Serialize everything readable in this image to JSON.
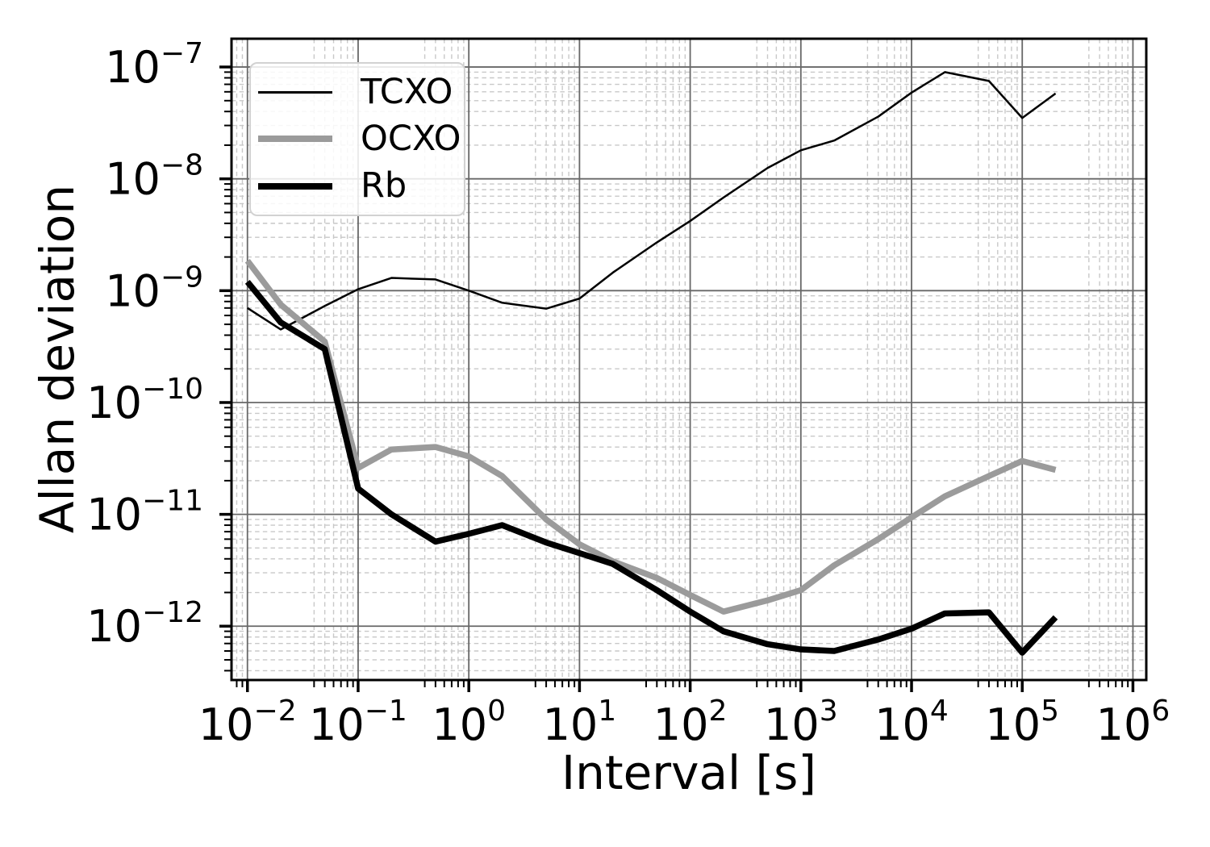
{
  "chart_data": {
    "type": "line",
    "title": "",
    "xlabel": "Interval [s]",
    "ylabel": "Allan deviation",
    "x_scale": "log",
    "y_scale": "log",
    "xlim": [
      0.00718,
      1320000
    ],
    "ylim": [
      3.3e-13,
      1.79e-07
    ],
    "grid": {
      "major": true,
      "minor": true,
      "minor_style": "dashed"
    },
    "legend_position": "upper-left",
    "x_tick_exponents": [
      -2,
      -1,
      0,
      1,
      2,
      3,
      4,
      5,
      6
    ],
    "y_tick_exponents": [
      -7,
      -8,
      -9,
      -10,
      -11,
      -12
    ],
    "x_tick_labels": [
      "10⁻²",
      "10⁻¹",
      "10⁰",
      "10¹",
      "10²",
      "10³",
      "10⁴",
      "10⁵",
      "10⁶"
    ],
    "y_tick_labels": [
      "10⁻⁷",
      "10⁻⁸",
      "10⁻⁹",
      "10⁻¹⁰",
      "10⁻¹¹",
      "10⁻¹²"
    ],
    "x": [
      0.01,
      0.02,
      0.05,
      0.1,
      0.2,
      0.5,
      1,
      2,
      5,
      10,
      20,
      50,
      100,
      200,
      500,
      1000,
      2000,
      5000,
      10000,
      20000,
      50000,
      100000,
      200000
    ],
    "series": [
      {
        "name": "TCXO",
        "color": "#000000",
        "width": 2.5,
        "values": [
          7e-10,
          4.5e-10,
          7.3e-10,
          1.03e-09,
          1.3e-09,
          1.26e-09,
          1e-09,
          7.8e-10,
          6.9e-10,
          8.5e-10,
          1.45e-09,
          2.7e-09,
          4.2e-09,
          6.8e-09,
          1.25e-08,
          1.8e-08,
          2.2e-08,
          3.6e-08,
          5.9e-08,
          9e-08,
          7.5e-08,
          3.5e-08,
          5.8e-08
        ]
      },
      {
        "name": "OCXO",
        "color": "#9b9b9b",
        "width": 7.5,
        "values": [
          1.85e-09,
          7.5e-10,
          3.5e-10,
          2.6e-11,
          3.8e-11,
          4e-11,
          3.3e-11,
          2.2e-11,
          9e-12,
          5.4e-12,
          3.8e-12,
          2.7e-12,
          1.9e-12,
          1.35e-12,
          1.7e-12,
          2.1e-12,
          3.5e-12,
          6e-12,
          9.4e-12,
          1.45e-11,
          2.2e-11,
          3e-11,
          2.5e-11
        ]
      },
      {
        "name": "Rb",
        "color": "#000000",
        "width": 7.5,
        "values": [
          1.2e-09,
          5.2e-10,
          3e-10,
          1.7e-11,
          1e-11,
          5.7e-12,
          6.7e-12,
          8e-12,
          5.6e-12,
          4.5e-12,
          3.6e-12,
          2.1e-12,
          1.35e-12,
          9e-13,
          6.9e-13,
          6.2e-13,
          6e-13,
          7.6e-13,
          9.5e-13,
          1.3e-12,
          1.33e-12,
          5.8e-13,
          1.2e-12
        ]
      }
    ],
    "colors": {
      "spine": "#000000",
      "grid_major": "#686868",
      "grid_minor": "#c8c8c8",
      "tick": "#000000",
      "text": "#000000",
      "background": "#ffffff"
    }
  },
  "legend": {
    "items": [
      {
        "label": "TCXO"
      },
      {
        "label": "OCXO"
      },
      {
        "label": "Rb"
      }
    ]
  }
}
